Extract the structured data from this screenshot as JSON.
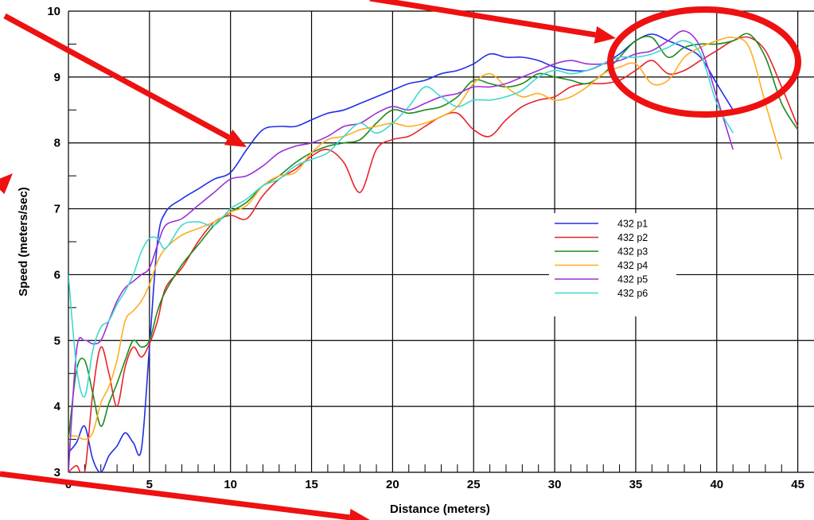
{
  "chart_data": {
    "type": "line",
    "title": "",
    "xlabel": "Distance (meters)",
    "ylabel": "Speed (meters/sec)",
    "xlim": [
      0,
      46
    ],
    "ylim": [
      3,
      10
    ],
    "x_ticks": [
      0,
      5,
      10,
      15,
      20,
      25,
      30,
      35,
      40,
      45
    ],
    "y_ticks": [
      3,
      4,
      5,
      6,
      7,
      8,
      9,
      10
    ],
    "grid": true,
    "legend_position": "center-right",
    "series": [
      {
        "name": "432 p1",
        "color": "#1f2fe6",
        "points": [
          [
            0,
            3.3
          ],
          [
            0.5,
            3.45
          ],
          [
            1,
            3.7
          ],
          [
            1.5,
            3.2
          ],
          [
            2,
            3.0
          ],
          [
            2.5,
            3.25
          ],
          [
            3,
            3.4
          ],
          [
            3.5,
            3.6
          ],
          [
            4,
            3.45
          ],
          [
            4.5,
            3.35
          ],
          [
            5,
            4.9
          ],
          [
            5.5,
            6.5
          ],
          [
            6,
            6.95
          ],
          [
            7,
            7.15
          ],
          [
            8,
            7.3
          ],
          [
            9,
            7.45
          ],
          [
            10,
            7.55
          ],
          [
            11,
            7.9
          ],
          [
            12,
            8.2
          ],
          [
            13,
            8.25
          ],
          [
            14,
            8.25
          ],
          [
            15,
            8.35
          ],
          [
            16,
            8.45
          ],
          [
            17,
            8.5
          ],
          [
            18,
            8.6
          ],
          [
            19,
            8.7
          ],
          [
            20,
            8.8
          ],
          [
            21,
            8.9
          ],
          [
            22,
            8.95
          ],
          [
            23,
            9.05
          ],
          [
            24,
            9.1
          ],
          [
            25,
            9.2
          ],
          [
            26,
            9.35
          ],
          [
            27,
            9.3
          ],
          [
            28,
            9.3
          ],
          [
            29,
            9.25
          ],
          [
            30,
            9.15
          ],
          [
            31,
            9.1
          ],
          [
            32,
            9.1
          ],
          [
            33,
            9.2
          ],
          [
            34,
            9.35
          ],
          [
            35,
            9.55
          ],
          [
            36,
            9.65
          ],
          [
            37,
            9.55
          ],
          [
            38,
            9.45
          ],
          [
            39,
            9.3
          ],
          [
            40,
            8.9
          ],
          [
            41,
            8.5
          ]
        ]
      },
      {
        "name": "432 p2",
        "color": "#e8232a",
        "points": [
          [
            0,
            3.0
          ],
          [
            0.5,
            3.1
          ],
          [
            1,
            3.0
          ],
          [
            1.5,
            4.2
          ],
          [
            2,
            4.9
          ],
          [
            2.5,
            4.5
          ],
          [
            3,
            4.0
          ],
          [
            3.5,
            4.6
          ],
          [
            4,
            4.9
          ],
          [
            4.5,
            4.75
          ],
          [
            5,
            4.95
          ],
          [
            5.5,
            5.3
          ],
          [
            6,
            5.8
          ],
          [
            7,
            6.1
          ],
          [
            8,
            6.5
          ],
          [
            9,
            6.8
          ],
          [
            10,
            6.9
          ],
          [
            11,
            6.85
          ],
          [
            12,
            7.2
          ],
          [
            13,
            7.45
          ],
          [
            14,
            7.6
          ],
          [
            15,
            7.8
          ],
          [
            16,
            7.9
          ],
          [
            17,
            7.7
          ],
          [
            18,
            7.25
          ],
          [
            19,
            7.9
          ],
          [
            20,
            8.05
          ],
          [
            21,
            8.1
          ],
          [
            22,
            8.25
          ],
          [
            23,
            8.4
          ],
          [
            24,
            8.45
          ],
          [
            25,
            8.2
          ],
          [
            26,
            8.1
          ],
          [
            27,
            8.35
          ],
          [
            28,
            8.55
          ],
          [
            29,
            8.65
          ],
          [
            30,
            8.7
          ],
          [
            31,
            8.85
          ],
          [
            32,
            8.9
          ],
          [
            33,
            8.9
          ],
          [
            34,
            8.95
          ],
          [
            35,
            9.1
          ],
          [
            36,
            9.25
          ],
          [
            37,
            9.05
          ],
          [
            38,
            9.1
          ],
          [
            39,
            9.25
          ],
          [
            40,
            9.4
          ],
          [
            41,
            9.55
          ],
          [
            42,
            9.6
          ],
          [
            43,
            9.4
          ],
          [
            44,
            8.85
          ],
          [
            45,
            8.25
          ]
        ]
      },
      {
        "name": "432 p3",
        "color": "#1e8a1e",
        "points": [
          [
            0,
            3.5
          ],
          [
            0.5,
            4.55
          ],
          [
            1,
            4.7
          ],
          [
            1.5,
            4.2
          ],
          [
            2,
            3.7
          ],
          [
            2.5,
            4.05
          ],
          [
            3,
            4.35
          ],
          [
            3.5,
            4.7
          ],
          [
            4,
            5.0
          ],
          [
            4.5,
            4.9
          ],
          [
            5,
            5.0
          ],
          [
            5.5,
            5.45
          ],
          [
            6,
            5.75
          ],
          [
            7,
            6.15
          ],
          [
            8,
            6.45
          ],
          [
            9,
            6.75
          ],
          [
            10,
            6.95
          ],
          [
            11,
            7.1
          ],
          [
            12,
            7.35
          ],
          [
            13,
            7.5
          ],
          [
            14,
            7.7
          ],
          [
            15,
            7.85
          ],
          [
            16,
            7.95
          ],
          [
            17,
            8.0
          ],
          [
            18,
            8.05
          ],
          [
            19,
            8.3
          ],
          [
            20,
            8.5
          ],
          [
            21,
            8.45
          ],
          [
            22,
            8.5
          ],
          [
            23,
            8.55
          ],
          [
            24,
            8.7
          ],
          [
            25,
            8.95
          ],
          [
            26,
            8.9
          ],
          [
            27,
            8.85
          ],
          [
            28,
            8.9
          ],
          [
            29,
            9.05
          ],
          [
            30,
            9.0
          ],
          [
            31,
            8.95
          ],
          [
            32,
            8.9
          ],
          [
            33,
            9.05
          ],
          [
            34,
            9.3
          ],
          [
            35,
            9.55
          ],
          [
            36,
            9.6
          ],
          [
            37,
            9.3
          ],
          [
            38,
            9.45
          ],
          [
            39,
            9.5
          ],
          [
            40,
            9.5
          ],
          [
            41,
            9.55
          ],
          [
            42,
            9.65
          ],
          [
            43,
            9.3
          ],
          [
            44,
            8.6
          ],
          [
            45,
            8.2
          ]
        ]
      },
      {
        "name": "432 p4",
        "color": "#ffad1f",
        "points": [
          [
            0,
            3.55
          ],
          [
            0.5,
            3.55
          ],
          [
            1,
            3.5
          ],
          [
            1.5,
            3.6
          ],
          [
            2,
            4.05
          ],
          [
            2.5,
            4.3
          ],
          [
            3,
            4.7
          ],
          [
            3.5,
            5.3
          ],
          [
            4,
            5.45
          ],
          [
            4.5,
            5.6
          ],
          [
            5,
            5.85
          ],
          [
            5.5,
            6.2
          ],
          [
            6,
            6.4
          ],
          [
            7,
            6.6
          ],
          [
            8,
            6.7
          ],
          [
            9,
            6.8
          ],
          [
            10,
            6.95
          ],
          [
            11,
            7.05
          ],
          [
            12,
            7.35
          ],
          [
            13,
            7.5
          ],
          [
            14,
            7.55
          ],
          [
            15,
            7.85
          ],
          [
            16,
            8.05
          ],
          [
            17,
            8.1
          ],
          [
            18,
            8.2
          ],
          [
            19,
            8.25
          ],
          [
            20,
            8.3
          ],
          [
            21,
            8.25
          ],
          [
            22,
            8.3
          ],
          [
            23,
            8.4
          ],
          [
            24,
            8.55
          ],
          [
            25,
            8.9
          ],
          [
            26,
            9.05
          ],
          [
            27,
            8.85
          ],
          [
            28,
            8.7
          ],
          [
            29,
            8.75
          ],
          [
            30,
            8.65
          ],
          [
            31,
            8.7
          ],
          [
            32,
            8.85
          ],
          [
            33,
            9.05
          ],
          [
            34,
            9.15
          ],
          [
            35,
            9.2
          ],
          [
            36,
            8.9
          ],
          [
            37,
            8.95
          ],
          [
            38,
            9.3
          ],
          [
            39,
            9.45
          ],
          [
            40,
            9.55
          ],
          [
            41,
            9.6
          ],
          [
            42,
            9.45
          ],
          [
            43,
            8.6
          ],
          [
            44,
            7.75
          ]
        ]
      },
      {
        "name": "432 p5",
        "color": "#9b30d9",
        "points": [
          [
            0,
            3.0
          ],
          [
            0.5,
            4.85
          ],
          [
            1,
            5.0
          ],
          [
            1.5,
            4.95
          ],
          [
            2,
            5.0
          ],
          [
            2.5,
            5.3
          ],
          [
            3,
            5.6
          ],
          [
            3.5,
            5.8
          ],
          [
            4,
            5.9
          ],
          [
            4.5,
            6.0
          ],
          [
            5,
            6.1
          ],
          [
            5.5,
            6.45
          ],
          [
            6,
            6.75
          ],
          [
            7,
            6.85
          ],
          [
            8,
            7.05
          ],
          [
            9,
            7.25
          ],
          [
            10,
            7.45
          ],
          [
            11,
            7.5
          ],
          [
            12,
            7.65
          ],
          [
            13,
            7.85
          ],
          [
            14,
            7.95
          ],
          [
            15,
            8.0
          ],
          [
            16,
            8.1
          ],
          [
            17,
            8.25
          ],
          [
            18,
            8.3
          ],
          [
            19,
            8.45
          ],
          [
            20,
            8.55
          ],
          [
            21,
            8.5
          ],
          [
            22,
            8.6
          ],
          [
            23,
            8.7
          ],
          [
            24,
            8.75
          ],
          [
            25,
            8.85
          ],
          [
            26,
            8.85
          ],
          [
            27,
            8.9
          ],
          [
            28,
            9.0
          ],
          [
            29,
            9.1
          ],
          [
            30,
            9.2
          ],
          [
            31,
            9.25
          ],
          [
            32,
            9.2
          ],
          [
            33,
            9.2
          ],
          [
            34,
            9.25
          ],
          [
            35,
            9.35
          ],
          [
            36,
            9.4
          ],
          [
            37,
            9.55
          ],
          [
            38,
            9.7
          ],
          [
            39,
            9.45
          ],
          [
            40,
            8.7
          ],
          [
            41,
            7.9
          ]
        ]
      },
      {
        "name": "432 p6",
        "color": "#3fd9cf",
        "points": [
          [
            0,
            6.0
          ],
          [
            0.5,
            4.6
          ],
          [
            1,
            4.15
          ],
          [
            1.5,
            4.85
          ],
          [
            2,
            5.2
          ],
          [
            2.5,
            5.3
          ],
          [
            3,
            5.55
          ],
          [
            3.5,
            5.75
          ],
          [
            4,
            6.0
          ],
          [
            4.5,
            6.35
          ],
          [
            5,
            6.55
          ],
          [
            5.5,
            6.55
          ],
          [
            6,
            6.4
          ],
          [
            7,
            6.75
          ],
          [
            8,
            6.8
          ],
          [
            9,
            6.75
          ],
          [
            10,
            7.0
          ],
          [
            11,
            7.15
          ],
          [
            12,
            7.35
          ],
          [
            13,
            7.45
          ],
          [
            14,
            7.65
          ],
          [
            15,
            7.75
          ],
          [
            16,
            7.85
          ],
          [
            17,
            8.1
          ],
          [
            18,
            8.3
          ],
          [
            19,
            8.15
          ],
          [
            20,
            8.3
          ],
          [
            21,
            8.55
          ],
          [
            22,
            8.85
          ],
          [
            23,
            8.7
          ],
          [
            24,
            8.55
          ],
          [
            25,
            8.65
          ],
          [
            26,
            8.65
          ],
          [
            27,
            8.7
          ],
          [
            28,
            8.8
          ],
          [
            29,
            9.0
          ],
          [
            30,
            9.1
          ],
          [
            31,
            9.05
          ],
          [
            32,
            9.1
          ],
          [
            33,
            9.2
          ],
          [
            34,
            9.3
          ],
          [
            35,
            9.3
          ],
          [
            36,
            9.35
          ],
          [
            37,
            9.45
          ],
          [
            38,
            9.55
          ],
          [
            39,
            9.35
          ],
          [
            40,
            8.6
          ],
          [
            41,
            8.15
          ]
        ]
      }
    ]
  }
}
